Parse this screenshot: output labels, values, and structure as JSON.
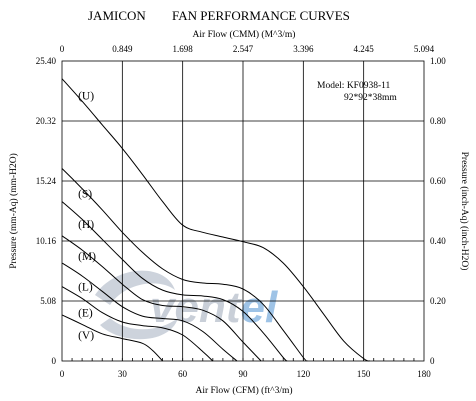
{
  "header": {
    "brand": "JAMICON",
    "title": "FAN PERFORMANCE CURVES"
  },
  "watermark": {
    "text_a": "vent",
    "text_b": "el",
    "color_a": "#c9cfd8",
    "color_b": "#9ec3e6"
  },
  "model": {
    "line1": "Model: KF0938-11",
    "line2": "92*92*38mm"
  },
  "chart_data": {
    "type": "line",
    "title": "FAN PERFORMANCE CURVES",
    "xlabel": "Air Flow (CFM) (ft^3/m)",
    "x2label": "Air Flow (CMM) (M^3/m)",
    "ylabel": "Pressure (mm-Aq) (mm-H2O)",
    "y2label": "Pressure (inch-Aq) (inch-H2O)",
    "xlim": [
      0,
      180
    ],
    "ylim": [
      0,
      25.4
    ],
    "x_ticks": [
      "0",
      "30",
      "60",
      "90",
      "120",
      "150",
      "180"
    ],
    "x2_ticks": [
      "0",
      "0.849",
      "1.698",
      "2.547",
      "3.396",
      "4.245",
      "5.094"
    ],
    "y_ticks": [
      "0",
      "5.08",
      "10.16",
      "15.24",
      "20.32",
      "25.40"
    ],
    "y2_ticks": [
      "0",
      "0.20",
      "0.40",
      "0.60",
      "0.80",
      "1.00"
    ],
    "grid": true,
    "series": [
      {
        "name": "(U)",
        "label_at": [
          8,
          22.5
        ],
        "x": [
          0,
          10,
          20,
          30,
          40,
          50,
          60,
          70,
          80,
          90,
          100,
          110,
          120,
          130,
          140,
          150,
          153
        ],
        "y": [
          23.9,
          22.0,
          20.0,
          18.0,
          15.8,
          13.5,
          11.5,
          10.9,
          10.5,
          10.1,
          9.6,
          8.3,
          6.3,
          4.0,
          1.7,
          0.2,
          0
        ]
      },
      {
        "name": "(S)",
        "label_at": [
          8,
          14.2
        ],
        "x": [
          0,
          10,
          20,
          30,
          40,
          50,
          60,
          70,
          80,
          90,
          100,
          110,
          120,
          122
        ],
        "y": [
          16.3,
          14.6,
          12.8,
          10.9,
          9.2,
          7.8,
          6.9,
          6.6,
          6.5,
          6.1,
          4.8,
          2.6,
          0.3,
          0
        ]
      },
      {
        "name": "(H)",
        "label_at": [
          8,
          11.6
        ],
        "x": [
          0,
          10,
          20,
          30,
          40,
          50,
          60,
          70,
          80,
          90,
          100,
          110,
          112
        ],
        "y": [
          13.5,
          12.0,
          10.3,
          8.6,
          7.0,
          6.0,
          5.6,
          5.5,
          5.2,
          4.2,
          2.4,
          0.3,
          0
        ]
      },
      {
        "name": "(M)",
        "label_at": [
          8,
          8.9
        ],
        "x": [
          0,
          10,
          20,
          30,
          40,
          50,
          60,
          70,
          80,
          90,
          99
        ],
        "y": [
          10.6,
          9.4,
          8.0,
          6.5,
          5.2,
          4.7,
          4.6,
          4.3,
          3.4,
          1.6,
          0
        ]
      },
      {
        "name": "(L)",
        "label_at": [
          8,
          6.3
        ],
        "x": [
          0,
          10,
          20,
          30,
          40,
          50,
          60,
          70,
          80,
          87
        ],
        "y": [
          8.3,
          7.2,
          5.9,
          4.6,
          3.8,
          3.6,
          3.4,
          2.5,
          1.0,
          0
        ]
      },
      {
        "name": "(E)",
        "label_at": [
          8,
          4.1
        ],
        "x": [
          0,
          10,
          20,
          30,
          40,
          50,
          60,
          70,
          75
        ],
        "y": [
          6.3,
          5.3,
          4.1,
          3.3,
          3.0,
          2.8,
          2.2,
          0.8,
          0
        ]
      },
      {
        "name": "(V)",
        "label_at": [
          8,
          2.2
        ],
        "x": [
          0,
          10,
          20,
          30,
          40,
          45,
          50
        ],
        "y": [
          3.9,
          3.1,
          2.3,
          1.9,
          1.5,
          0.9,
          0
        ]
      }
    ]
  }
}
